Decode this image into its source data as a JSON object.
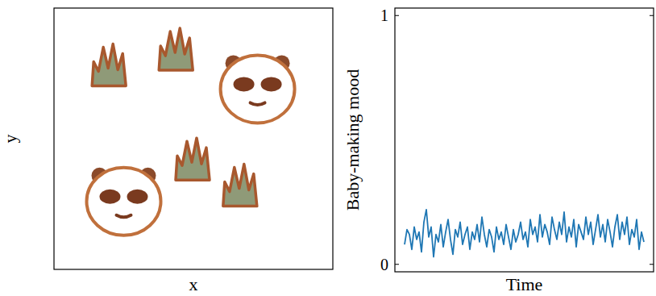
{
  "chart_data": [
    {
      "type": "scatter",
      "xlabel": "x",
      "ylabel": "y",
      "xlim": [
        0,
        1
      ],
      "ylim": [
        0,
        1
      ],
      "tick_labels": false,
      "series": [
        {
          "marker": "panda",
          "x": [
            0.73,
            0.25
          ],
          "values": [
            0.69,
            0.26
          ]
        },
        {
          "marker": "bamboo",
          "x": [
            0.2,
            0.44,
            0.5,
            0.67
          ],
          "values": [
            0.77,
            0.83,
            0.41,
            0.31
          ]
        }
      ]
    },
    {
      "type": "line",
      "xlabel": "Time",
      "ylabel": "Baby-making mood",
      "xlim": [
        -4,
        103
      ],
      "ylim": [
        -0.03,
        1.03
      ],
      "yticks": [
        0,
        1
      ],
      "tick_labels": "y",
      "x": [
        0,
        1,
        2,
        3,
        4,
        5,
        6,
        7,
        8,
        9,
        10,
        11,
        12,
        13,
        14,
        15,
        16,
        17,
        18,
        19,
        20,
        21,
        22,
        23,
        24,
        25,
        26,
        27,
        28,
        29,
        30,
        31,
        32,
        33,
        34,
        35,
        36,
        37,
        38,
        39,
        40,
        41,
        42,
        43,
        44,
        45,
        46,
        47,
        48,
        49,
        50,
        51,
        52,
        53,
        54,
        55,
        56,
        57,
        58,
        59,
        60,
        61,
        62,
        63,
        64,
        65,
        66,
        67,
        68,
        69,
        70,
        71,
        72,
        73,
        74,
        75,
        76,
        77,
        78,
        79,
        80,
        81,
        82,
        83,
        84,
        85,
        86,
        87,
        88,
        89,
        90,
        91,
        92,
        93,
        94,
        95,
        96,
        97,
        98,
        99
      ],
      "series": [
        {
          "color": "#1f77b4",
          "values": [
            0.08,
            0.14,
            0.12,
            0.06,
            0.15,
            0.1,
            0.13,
            0.05,
            0.17,
            0.22,
            0.11,
            0.15,
            0.03,
            0.12,
            0.09,
            0.16,
            0.07,
            0.13,
            0.18,
            0.1,
            0.04,
            0.14,
            0.11,
            0.17,
            0.08,
            0.12,
            0.15,
            0.06,
            0.13,
            0.1,
            0.16,
            0.09,
            0.19,
            0.12,
            0.07,
            0.14,
            0.11,
            0.05,
            0.15,
            0.1,
            0.13,
            0.08,
            0.16,
            0.11,
            0.06,
            0.14,
            0.09,
            0.12,
            0.17,
            0.1,
            0.13,
            0.07,
            0.18,
            0.12,
            0.15,
            0.09,
            0.2,
            0.11,
            0.16,
            0.13,
            0.08,
            0.19,
            0.14,
            0.1,
            0.17,
            0.12,
            0.21,
            0.09,
            0.15,
            0.11,
            0.18,
            0.07,
            0.16,
            0.13,
            0.1,
            0.19,
            0.12,
            0.17,
            0.08,
            0.14,
            0.2,
            0.11,
            0.16,
            0.09,
            0.18,
            0.13,
            0.07,
            0.15,
            0.2,
            0.1,
            0.17,
            0.12,
            0.19,
            0.08,
            0.14,
            0.11,
            0.18,
            0.06,
            0.13,
            0.09
          ]
        }
      ]
    }
  ]
}
